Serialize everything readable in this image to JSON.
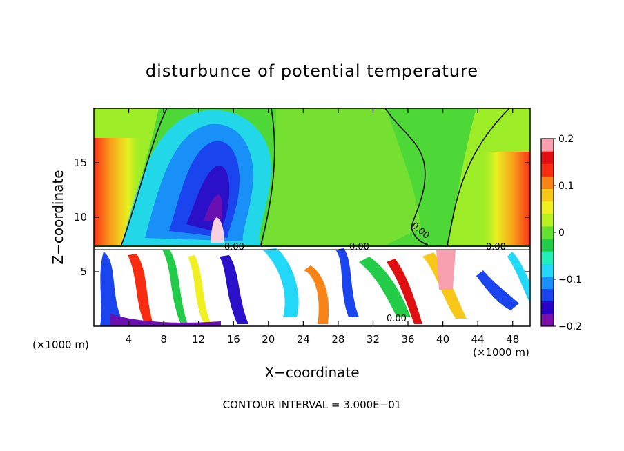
{
  "chart_data": {
    "type": "heatmap",
    "title": "disturbunce of potential temperature",
    "xlabel": "X−coordinate",
    "ylabel": "Z−coordinate",
    "x_unit_left": "(×1000 m)",
    "x_unit_right": "(×1000 m)",
    "xlim": [
      0,
      50
    ],
    "ylim": [
      0,
      20
    ],
    "x_ticks": [
      4,
      8,
      12,
      16,
      20,
      24,
      28,
      32,
      36,
      40,
      44,
      48
    ],
    "x_tick_labels": [
      "4",
      "8",
      "12",
      "16",
      "20",
      "24",
      "28",
      "32",
      "36",
      "40",
      "44",
      "48"
    ],
    "y_ticks": [
      5,
      10,
      15
    ],
    "y_tick_labels": [
      "5",
      "10",
      "15"
    ],
    "colorbar": {
      "range": [
        -0.2,
        0.2
      ],
      "ticks": [
        0.2,
        0.1,
        0,
        -0.1,
        -0.2
      ],
      "tick_labels": [
        "0.2",
        "0.1",
        "0",
        "−0.1",
        "−0.2"
      ],
      "colors": [
        "#7a10a8",
        "#2a00c8",
        "#1a44ee",
        "#1890f8",
        "#22d8f8",
        "#22f0b8",
        "#22cc48",
        "#66e030",
        "#b8f020",
        "#f0f020",
        "#f8c818",
        "#f88418",
        "#f82c10",
        "#e01010",
        "#f8a0b0"
      ]
    },
    "contour_labels": [
      "0.00",
      "0.00",
      "0.00",
      "0.00",
      "0.00"
    ],
    "features": {
      "boundary_layer_top": 7.3,
      "cold_anomaly": {
        "x_center": 14.5,
        "z_center": 12,
        "min_value": -0.2
      },
      "warm_edges": {
        "left_x": 0,
        "right_x": 50,
        "z": 9.5,
        "value": 0.13
      },
      "warm_plume": {
        "x": 14,
        "z_range": [
          8,
          10
        ],
        "value": 0.2
      }
    },
    "annotation": "CONTOUR INTERVAL = 3.000E−01"
  }
}
